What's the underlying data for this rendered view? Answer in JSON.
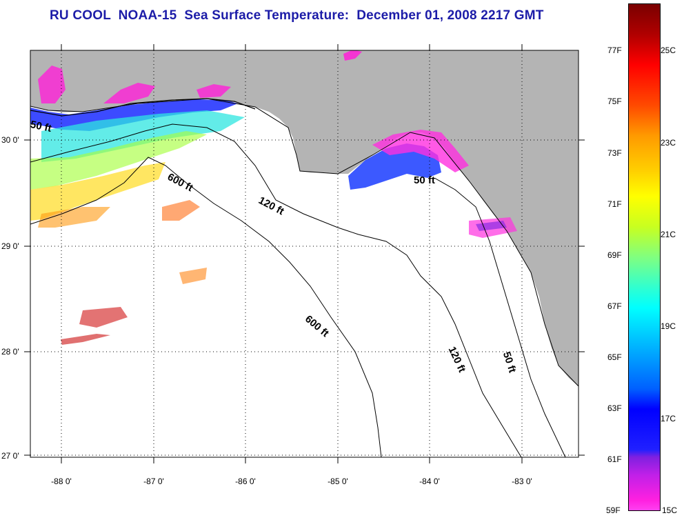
{
  "title": "RU COOL  NOAA-15  Sea Surface Temperature:  December 01, 2008 2217 GMT",
  "map": {
    "latitude_labels": [
      "30 0'",
      "29 0'",
      "28 0'",
      "27 0'"
    ],
    "longitude_labels": [
      "-88 0'",
      "-87 0'",
      "-86 0'",
      "-85 0'",
      "-84 0'",
      "-83 0'"
    ],
    "contour_labels": [
      "50 ft",
      "600 ft",
      "120 ft",
      "50 ft",
      "600 ft",
      "120 ft",
      "50 ft"
    ],
    "colors": {
      "land": "#b4b4b4",
      "water": "#ffffff",
      "bathymetry_contour": "#000000"
    }
  },
  "colorbar": {
    "fahrenheit_labels": [
      "77F",
      "75F",
      "73F",
      "71F",
      "69F",
      "67F",
      "65F",
      "63F",
      "61F",
      "59F"
    ],
    "celsius_labels": [
      "25C",
      "23C",
      "21C",
      "19C",
      "17C",
      "15C"
    ]
  }
}
